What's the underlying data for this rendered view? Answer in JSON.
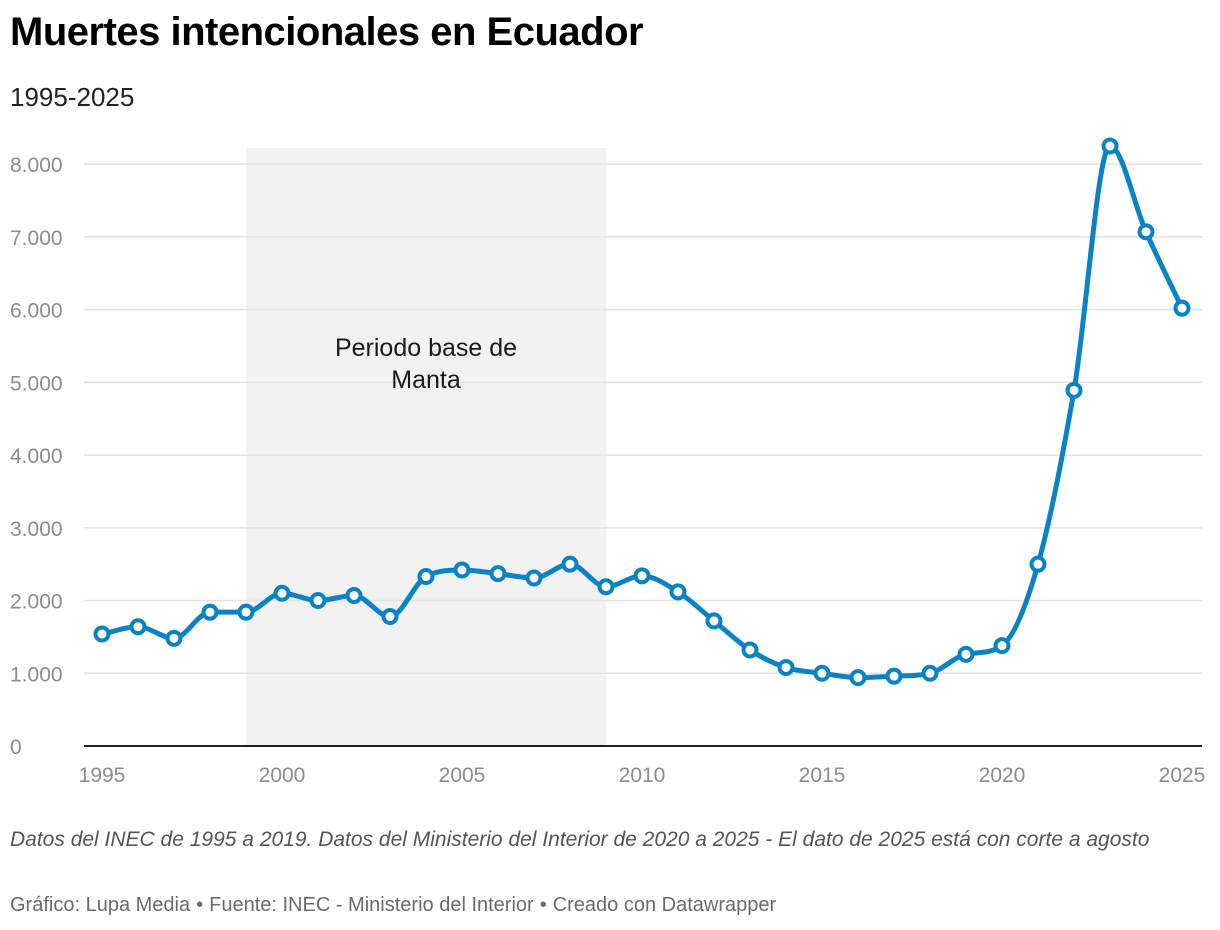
{
  "title": "Muertes intencionales en Ecuador",
  "subtitle": "1995-2025",
  "footer": {
    "note": "Datos del INEC de 1995 a 2019. Datos del Ministerio del Interior de 2020 a 2025 - El dato de 2025 está con corte a agosto",
    "credit_chart": "Gráfico: Lupa Media",
    "credit_source": "Fuente: INEC - Ministerio del Interior",
    "credit_tool": "Creado con Datawrapper",
    "separator": "•"
  },
  "colors": {
    "line": "#0a83c6",
    "highlight_band": "#f2f2f2",
    "grid": "#e3e3e3",
    "axis": "#222222",
    "tick_label": "#8c8c8c"
  },
  "chart_data": {
    "type": "line",
    "title": "Muertes intencionales en Ecuador",
    "subtitle": "1995-2025",
    "xlabel": "",
    "ylabel": "",
    "xlim": [
      1995,
      2025
    ],
    "ylim": [
      0,
      8250
    ],
    "x_ticks": [
      1995,
      2000,
      2005,
      2010,
      2015,
      2020,
      2025
    ],
    "y_ticks": [
      0,
      1000,
      2000,
      3000,
      4000,
      5000,
      6000,
      7000,
      8000
    ],
    "y_tick_labels": [
      "0",
      "1.000",
      "2.000",
      "3.000",
      "4.000",
      "5.000",
      "6.000",
      "7.000",
      "8.000"
    ],
    "grid": true,
    "highlight_range": {
      "x_start": 1999,
      "x_end": 2009,
      "label": "Periodo base de Manta"
    },
    "series": [
      {
        "name": "Muertes intencionales",
        "x": [
          1995,
          1996,
          1997,
          1998,
          1999,
          2000,
          2001,
          2002,
          2003,
          2004,
          2005,
          2006,
          2007,
          2008,
          2009,
          2010,
          2011,
          2012,
          2013,
          2014,
          2015,
          2016,
          2017,
          2018,
          2019,
          2020,
          2021,
          2022,
          2023,
          2024,
          2025
        ],
        "values": [
          1540,
          1640,
          1480,
          1840,
          1840,
          2100,
          2000,
          2070,
          1780,
          2330,
          2420,
          2370,
          2310,
          2500,
          2190,
          2340,
          2120,
          1720,
          1320,
          1080,
          1000,
          940,
          960,
          1000,
          1260,
          1380,
          2500,
          4890,
          8250,
          7070,
          6020
        ]
      }
    ]
  }
}
